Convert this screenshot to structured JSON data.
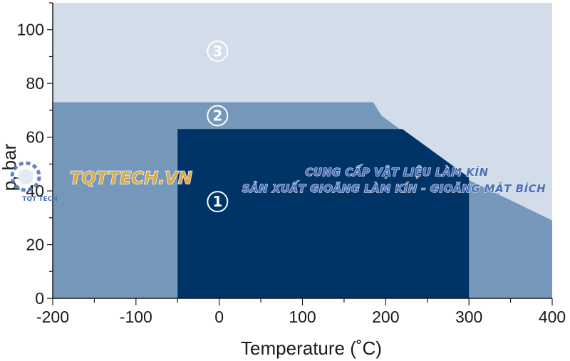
{
  "chart_data": {
    "type": "area",
    "xlabel": "Temperature (˚C)",
    "ylabel": "p, bar",
    "xlim": [
      -200,
      400
    ],
    "ylim": [
      0,
      110
    ],
    "x_ticks": [
      -200,
      -100,
      0,
      100,
      200,
      300,
      400
    ],
    "y_ticks": [
      0,
      20,
      40,
      60,
      80,
      100
    ],
    "grid": false,
    "zones": [
      {
        "name": "③",
        "color": "#d3dce9",
        "polygon": [
          [
            -200,
            0
          ],
          [
            400,
            0
          ],
          [
            400,
            110
          ],
          [
            -200,
            110
          ]
        ],
        "label_pos": [
          -2,
          92
        ]
      },
      {
        "name": "②",
        "color": "#7497ba",
        "polygon": [
          [
            -200,
            0
          ],
          [
            -200,
            73
          ],
          [
            185,
            73
          ],
          [
            195,
            68
          ],
          [
            300,
            44
          ],
          [
            400,
            29
          ],
          [
            400,
            0
          ]
        ],
        "label_pos": [
          -2,
          68
        ]
      },
      {
        "name": "①",
        "color": "#003366",
        "polygon": [
          [
            -50,
            0
          ],
          [
            -50,
            63
          ],
          [
            220,
            63
          ],
          [
            300,
            45
          ],
          [
            300,
            0
          ]
        ],
        "label_pos": [
          -2,
          36
        ]
      }
    ]
  },
  "watermark": {
    "brand": "TQTTECH.VN",
    "line1": "CUNG CẤP VẬT LIỆU LÀM KÍN",
    "line2": "SẢN XUẤT GIOĂNG LÀM KÍN - GIOĂNG MẶT BÍCH",
    "logo_text": "TQT TECH",
    "logo_color": "#4a6fb5",
    "brand_color": "#d9a94a"
  }
}
